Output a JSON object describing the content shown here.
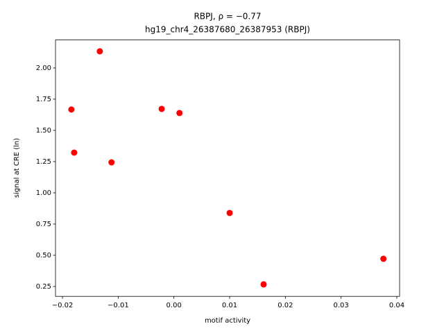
{
  "chart_data": {
    "type": "scatter",
    "title": "RBPJ, ρ = −0.77",
    "subtitle": "hg19_chr4_26387680_26387953 (RBPJ)",
    "x_label": "motif activity",
    "y_label": "signal at CRE (ln)",
    "series": [
      {
        "color": "#ff0000",
        "x": [
          -0.0184,
          -0.0179,
          -0.0133,
          -0.0112,
          -0.0022,
          0.001,
          0.01,
          0.0161,
          0.0376
        ],
        "values": [
          1.667,
          1.322,
          2.133,
          1.244,
          1.672,
          1.639,
          0.839,
          0.267,
          0.472
        ]
      }
    ],
    "xlim": [
      -0.02125,
      0.0405
    ],
    "ylim": [
      0.171,
      2.224
    ],
    "xticks": [
      {
        "value": -0.02,
        "label": "−0.02"
      },
      {
        "value": -0.01,
        "label": "−0.01"
      },
      {
        "value": 0,
        "label": "0.00"
      },
      {
        "value": 0.01,
        "label": "0.01"
      },
      {
        "value": 0.02,
        "label": "0.02"
      },
      {
        "value": 0.03,
        "label": "0.03"
      },
      {
        "value": 0.04,
        "label": "0.04"
      }
    ],
    "yticks": [
      {
        "value": 0.25,
        "label": "0.25"
      },
      {
        "value": 0.5,
        "label": "0.50"
      },
      {
        "value": 0.75,
        "label": "0.75"
      },
      {
        "value": 1,
        "label": "1.00"
      },
      {
        "value": 1.25,
        "label": "1.25"
      },
      {
        "value": 1.5,
        "label": "1.50"
      },
      {
        "value": 1.75,
        "label": "1.75"
      },
      {
        "value": 2,
        "label": "2.00"
      }
    ],
    "grid": false
  }
}
